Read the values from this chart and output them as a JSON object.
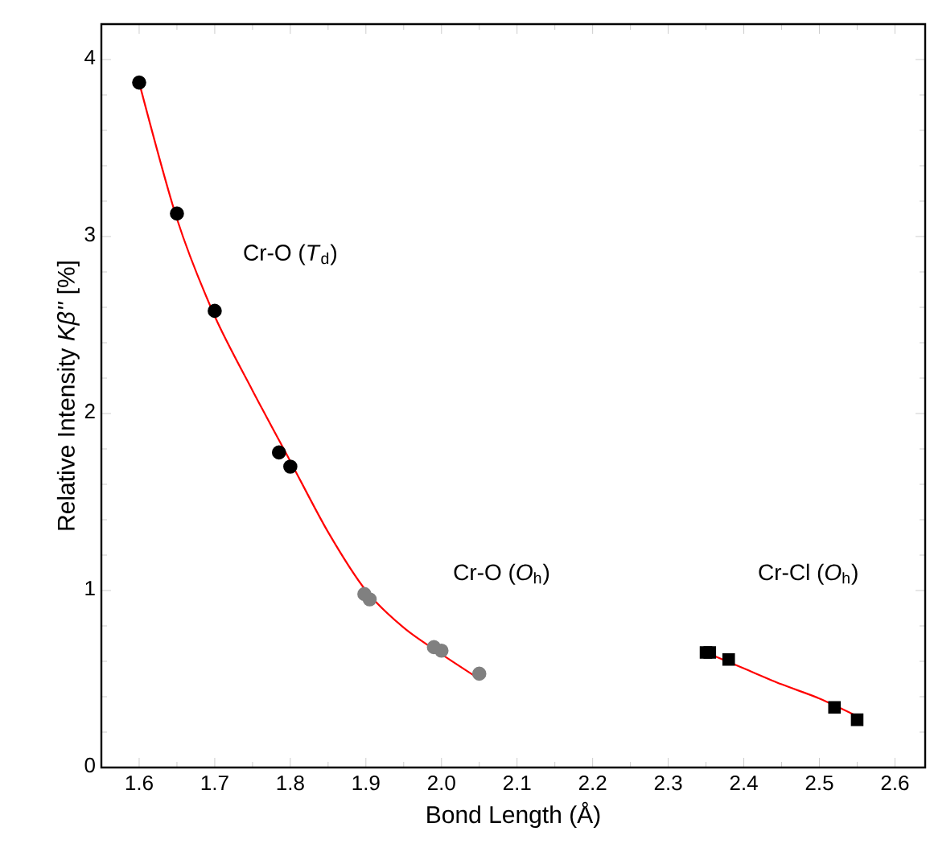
{
  "chart_data": {
    "type": "scatter",
    "xlabel": "Bond Length (Å)",
    "ylabel": "Relative Intensity *Kβ''* [%]",
    "xlim": [
      1.55,
      2.64
    ],
    "ylim": [
      0,
      4.2
    ],
    "xticks": [
      1.6,
      1.7,
      1.8,
      1.9,
      {
        "value": 2,
        "label": "2.0"
      },
      2.1,
      2.2,
      2.3,
      2.4,
      2.5,
      2.6
    ],
    "yticks": [
      0,
      1,
      2,
      3,
      4
    ],
    "grid": false,
    "series": [
      {
        "color": "#000000",
        "marker": "circle",
        "x": [
          1.6,
          1.65,
          1.7,
          1.785,
          1.8
        ],
        "values": [
          3.87,
          3.13,
          2.58,
          1.78,
          1.7
        ]
      },
      {
        "color": "#808080",
        "marker": "circle",
        "x": [
          1.898,
          1.905,
          1.99,
          2.0,
          2.05
        ],
        "values": [
          0.98,
          0.95,
          0.68,
          0.66,
          0.53
        ]
      },
      {
        "color": "#000000",
        "marker": "square",
        "x": [
          2.35,
          2.355,
          2.38,
          2.52,
          2.55
        ],
        "values": [
          0.65,
          0.65,
          0.61,
          0.34,
          0.27
        ]
      },
      {
        "type": "line",
        "color": "#ff0000",
        "marker": "none",
        "x": [
          1.6,
          1.65,
          1.7,
          1.75,
          1.8,
          1.85,
          1.9,
          1.95,
          2.0,
          2.05
        ],
        "values": [
          3.87,
          3.1,
          2.55,
          2.13,
          1.73,
          1.33,
          1.0,
          0.79,
          0.64,
          0.5
        ]
      },
      {
        "type": "line",
        "color": "#ff0000",
        "marker": "none",
        "x": [
          2.35,
          2.4,
          2.45,
          2.5,
          2.55
        ],
        "values": [
          0.65,
          0.56,
          0.47,
          0.39,
          0.29
        ]
      }
    ],
    "annotations": [
      "Cr-O (*T*$_{d}$)",
      "Cr-O (*O*$_{h}$)",
      "Cr-Cl (*O*$_{h}$)"
    ]
  }
}
